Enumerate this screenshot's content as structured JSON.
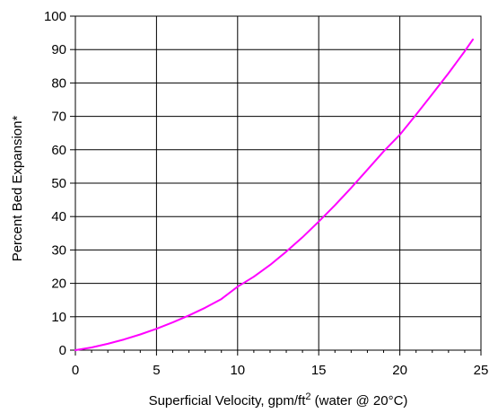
{
  "chart_data": {
    "type": "line",
    "title": "",
    "xlabel": "Superficial Velocity, gpm/ft",
    "xlabel_superscript": "2",
    "xlabel_suffix": " (water @ 20°C)",
    "ylabel": "Percent Bed Expansion*",
    "xlim": [
      0,
      25
    ],
    "ylim": [
      0,
      100
    ],
    "x_ticks": [
      0,
      5,
      10,
      15,
      20,
      25
    ],
    "y_ticks": [
      0,
      10,
      20,
      30,
      40,
      50,
      60,
      70,
      80,
      90,
      100
    ],
    "x_tick_labels": [
      "0",
      "5",
      "10",
      "15",
      "20",
      "25"
    ],
    "y_tick_labels": [
      "0",
      "10",
      "20",
      "30",
      "40",
      "50",
      "60",
      "70",
      "80",
      "90",
      "100"
    ],
    "grid": true,
    "legend": "none",
    "series": [
      {
        "color": "#ff00ff",
        "x": [
          0,
          1,
          2,
          3,
          4,
          5,
          6,
          7,
          8,
          9,
          10,
          11,
          12,
          13,
          14,
          15,
          16,
          17,
          18,
          19,
          20,
          21,
          22,
          23,
          24,
          24.5
        ],
        "y": [
          0,
          0.8,
          1.9,
          3.2,
          4.7,
          6.4,
          8.3,
          10.4,
          12.7,
          15.3,
          19.0,
          22.0,
          25.5,
          29.5,
          33.8,
          38.5,
          43.4,
          48.6,
          54.0,
          59.5,
          64.5,
          70.5,
          76.7,
          82.9,
          89.5,
          93.0
        ]
      }
    ]
  }
}
